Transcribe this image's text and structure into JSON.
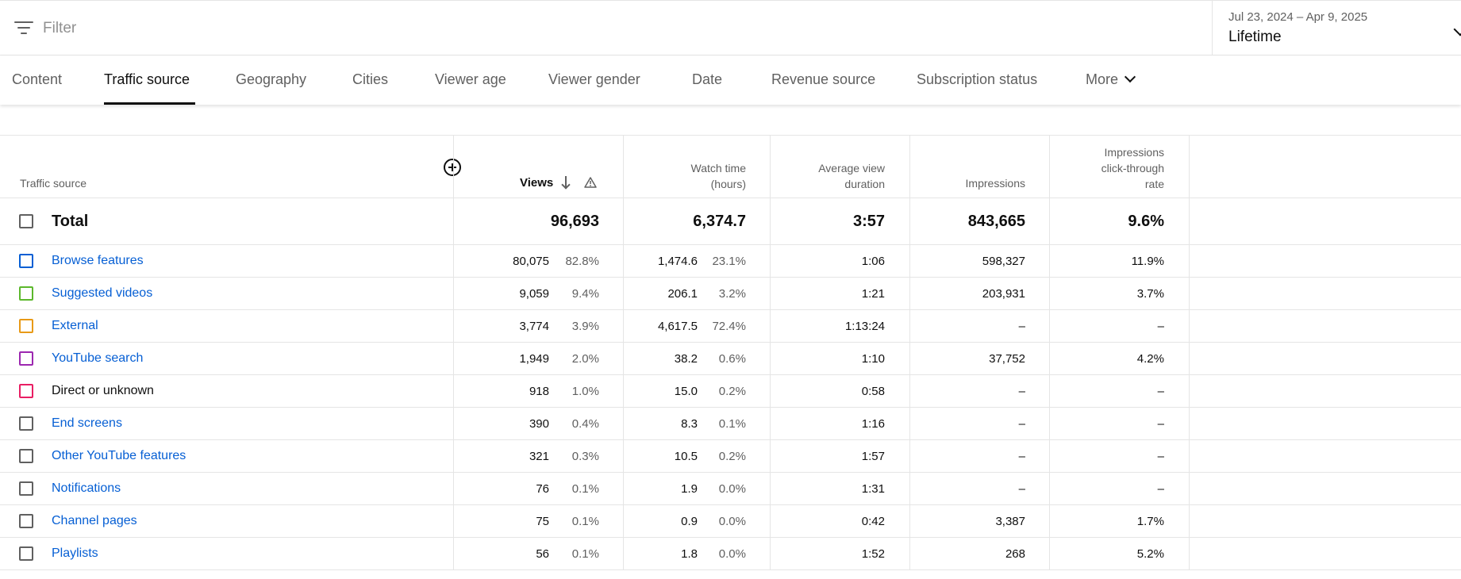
{
  "filter": {
    "placeholder": "Filter"
  },
  "date": {
    "range": "Jul 23, 2024 – Apr 9, 2025",
    "preset": "Lifetime"
  },
  "tabs": [
    {
      "label": "Content"
    },
    {
      "label": "Traffic source",
      "active": true
    },
    {
      "label": "Geography"
    },
    {
      "label": "Cities"
    },
    {
      "label": "Viewer age"
    },
    {
      "label": "Viewer gender"
    },
    {
      "label": "Date"
    },
    {
      "label": "Revenue source"
    },
    {
      "label": "Subscription status"
    },
    {
      "label": "More"
    }
  ],
  "table": {
    "columns": {
      "source": "Traffic source",
      "views": "Views",
      "watch_time": [
        "Watch time",
        "(hours)"
      ],
      "avg_duration": [
        "Average view",
        "duration"
      ],
      "impressions": "Impressions",
      "ctr": [
        "Impressions",
        "click-through",
        "rate"
      ]
    },
    "total": {
      "label": "Total",
      "views": "96,693",
      "watch": "6,374.7",
      "avg": "3:57",
      "impressions": "843,665",
      "ctr": "9.6%"
    },
    "rows": [
      {
        "label": "Browse features",
        "link": true,
        "color": "#065fd4",
        "views": "80,075",
        "views_pct": "82.8%",
        "watch": "1,474.6",
        "watch_pct": "23.1%",
        "avg": "1:06",
        "impressions": "598,327",
        "ctr": "11.9%"
      },
      {
        "label": "Suggested videos",
        "link": true,
        "color": "#5cb82c",
        "views": "9,059",
        "views_pct": "9.4%",
        "watch": "206.1",
        "watch_pct": "3.2%",
        "avg": "1:21",
        "impressions": "203,931",
        "ctr": "3.7%"
      },
      {
        "label": "External",
        "link": true,
        "color": "#e89a17",
        "views": "3,774",
        "views_pct": "3.9%",
        "watch": "4,617.5",
        "watch_pct": "72.4%",
        "avg": "1:13:24",
        "impressions": "–",
        "ctr": "–"
      },
      {
        "label": "YouTube search",
        "link": true,
        "color": "#9c27b0",
        "views": "1,949",
        "views_pct": "2.0%",
        "watch": "38.2",
        "watch_pct": "0.6%",
        "avg": "1:10",
        "impressions": "37,752",
        "ctr": "4.2%"
      },
      {
        "label": "Direct or unknown",
        "link": false,
        "color": "#e91e63",
        "views": "918",
        "views_pct": "1.0%",
        "watch": "15.0",
        "watch_pct": "0.2%",
        "avg": "0:58",
        "impressions": "–",
        "ctr": "–"
      },
      {
        "label": "End screens",
        "link": true,
        "color": "#606060",
        "views": "390",
        "views_pct": "0.4%",
        "watch": "8.3",
        "watch_pct": "0.1%",
        "avg": "1:16",
        "impressions": "–",
        "ctr": "–"
      },
      {
        "label": "Other YouTube features",
        "link": true,
        "color": "#606060",
        "views": "321",
        "views_pct": "0.3%",
        "watch": "10.5",
        "watch_pct": "0.2%",
        "avg": "1:57",
        "impressions": "–",
        "ctr": "–"
      },
      {
        "label": "Notifications",
        "link": true,
        "color": "#606060",
        "views": "76",
        "views_pct": "0.1%",
        "watch": "1.9",
        "watch_pct": "0.0%",
        "avg": "1:31",
        "impressions": "–",
        "ctr": "–"
      },
      {
        "label": "Channel pages",
        "link": true,
        "color": "#606060",
        "views": "75",
        "views_pct": "0.1%",
        "watch": "0.9",
        "watch_pct": "0.0%",
        "avg": "0:42",
        "impressions": "3,387",
        "ctr": "1.7%"
      },
      {
        "label": "Playlists",
        "link": true,
        "color": "#606060",
        "views": "56",
        "views_pct": "0.1%",
        "watch": "1.8",
        "watch_pct": "0.0%",
        "avg": "1:52",
        "impressions": "268",
        "ctr": "5.2%"
      }
    ]
  }
}
